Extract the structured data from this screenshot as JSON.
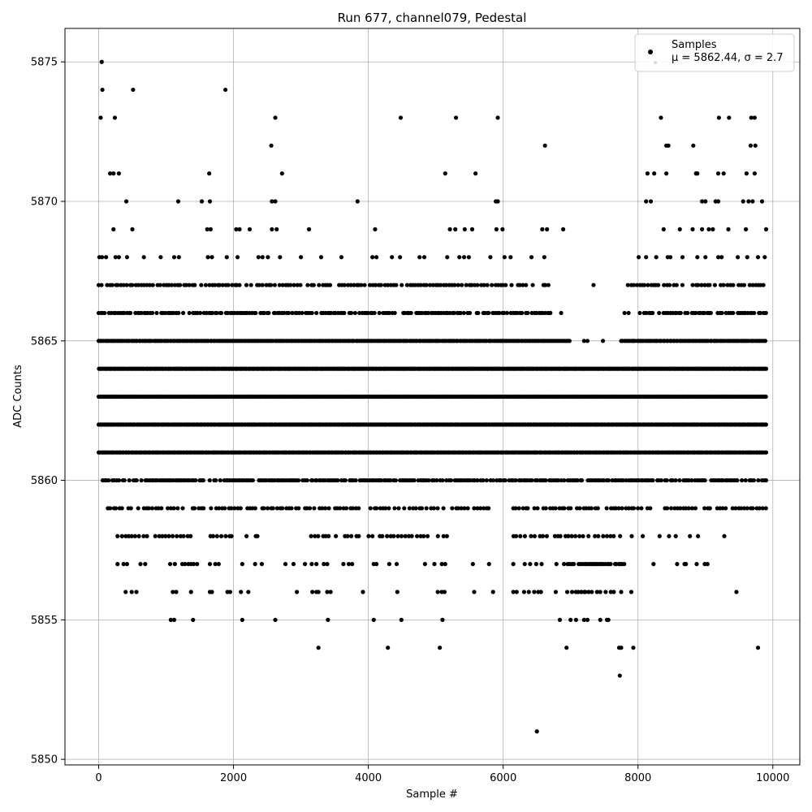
{
  "chart_data": {
    "type": "scatter",
    "title": "Run 677, channel079, Pedestal",
    "xlabel": "Sample #",
    "ylabel": "ADC Counts",
    "xlim": [
      -500,
      10400
    ],
    "ylim": [
      5849.8,
      5876.2
    ],
    "x_ticks": [
      0,
      2000,
      4000,
      6000,
      8000,
      10000
    ],
    "y_ticks": [
      5850,
      5855,
      5860,
      5865,
      5870,
      5875
    ],
    "grid": true,
    "legend": {
      "placement": "top-right",
      "series_name": "Samples",
      "stats_label": "μ = 5862.44, σ = 2.7"
    },
    "colors": {
      "marker": "#000000",
      "grid": "#b0b0b0",
      "legend_border": "#cccccc"
    },
    "n_samples_shown_range": [
      0,
      9900
    ],
    "dense_levels": [
      {
        "y": 5858,
        "x_ranges": [
          [
            280,
            2400
          ],
          [
            3150,
            3900
          ],
          [
            4000,
            5200
          ],
          [
            6150,
            8000
          ]
        ],
        "step": 55
      },
      {
        "y": 5859,
        "x_ranges": [
          [
            80,
            5800
          ],
          [
            6150,
            8200
          ],
          [
            8400,
            9300
          ],
          [
            9400,
            9900
          ]
        ],
        "step": 45
      },
      {
        "y": 5860,
        "x_ranges": [
          [
            60,
            9900
          ]
        ],
        "step": 30
      },
      {
        "y": 5861,
        "x_ranges": [
          [
            0,
            9900
          ]
        ],
        "step": 22
      },
      {
        "y": 5862,
        "x_ranges": [
          [
            0,
            9900
          ]
        ],
        "step": 20
      },
      {
        "y": 5863,
        "x_ranges": [
          [
            0,
            9900
          ]
        ],
        "step": 18
      },
      {
        "y": 5864,
        "x_ranges": [
          [
            0,
            9900
          ]
        ],
        "step": 20
      },
      {
        "y": 5865,
        "x_ranges": [
          [
            0,
            7000
          ],
          [
            7750,
            9900
          ]
        ],
        "step": 24
      },
      {
        "y": 5866,
        "x_ranges": [
          [
            0,
            6700
          ],
          [
            8000,
            9900
          ]
        ],
        "step": 32
      },
      {
        "y": 5867,
        "x_ranges": [
          [
            0,
            6700
          ],
          [
            7850,
            9900
          ]
        ],
        "step": 42
      },
      {
        "y": 5857,
        "x_ranges": [
          [
            6900,
            7800
          ]
        ],
        "step": 28
      },
      {
        "y": 5856,
        "x_ranges": [
          [
            6950,
            7750
          ]
        ],
        "step": 40
      }
    ],
    "points": [
      [
        30,
        5873
      ],
      [
        45,
        5875
      ],
      [
        55,
        5874
      ],
      [
        510,
        5874
      ],
      [
        1880,
        5874
      ],
      [
        240,
        5873
      ],
      [
        2620,
        5873
      ],
      [
        4480,
        5873
      ],
      [
        5300,
        5873
      ],
      [
        5920,
        5873
      ],
      [
        8340,
        5873
      ],
      [
        9200,
        5873
      ],
      [
        9350,
        5873
      ],
      [
        9680,
        5873
      ],
      [
        9730,
        5873
      ],
      [
        2560,
        5872
      ],
      [
        6620,
        5872
      ],
      [
        8420,
        5872
      ],
      [
        8450,
        5872
      ],
      [
        8820,
        5872
      ],
      [
        9670,
        5872
      ],
      [
        9740,
        5872
      ],
      [
        170,
        5871
      ],
      [
        220,
        5871
      ],
      [
        300,
        5871
      ],
      [
        1640,
        5871
      ],
      [
        2720,
        5871
      ],
      [
        5140,
        5871
      ],
      [
        5590,
        5871
      ],
      [
        8140,
        5871
      ],
      [
        8240,
        5871
      ],
      [
        8420,
        5871
      ],
      [
        8860,
        5871
      ],
      [
        8880,
        5871
      ],
      [
        9190,
        5871
      ],
      [
        9270,
        5871
      ],
      [
        9610,
        5871
      ],
      [
        9730,
        5871
      ],
      [
        410,
        5870
      ],
      [
        1180,
        5870
      ],
      [
        1530,
        5870
      ],
      [
        1650,
        5870
      ],
      [
        2570,
        5870
      ],
      [
        2620,
        5870
      ],
      [
        3840,
        5870
      ],
      [
        5890,
        5870
      ],
      [
        5920,
        5870
      ],
      [
        8120,
        5870
      ],
      [
        8190,
        5870
      ],
      [
        8950,
        5870
      ],
      [
        9000,
        5870
      ],
      [
        9150,
        5870
      ],
      [
        9190,
        5870
      ],
      [
        9560,
        5870
      ],
      [
        9640,
        5870
      ],
      [
        9700,
        5870
      ],
      [
        9840,
        5870
      ],
      [
        220,
        5869
      ],
      [
        500,
        5869
      ],
      [
        1610,
        5869
      ],
      [
        1660,
        5869
      ],
      [
        2040,
        5869
      ],
      [
        2090,
        5869
      ],
      [
        2240,
        5869
      ],
      [
        2570,
        5869
      ],
      [
        2640,
        5869
      ],
      [
        3120,
        5869
      ],
      [
        4100,
        5869
      ],
      [
        5210,
        5869
      ],
      [
        5290,
        5869
      ],
      [
        5430,
        5869
      ],
      [
        5540,
        5869
      ],
      [
        5900,
        5869
      ],
      [
        5990,
        5869
      ],
      [
        6580,
        5869
      ],
      [
        6650,
        5869
      ],
      [
        6890,
        5869
      ],
      [
        8380,
        5869
      ],
      [
        8620,
        5869
      ],
      [
        8810,
        5869
      ],
      [
        8950,
        5869
      ],
      [
        9050,
        5869
      ],
      [
        9110,
        5869
      ],
      [
        9340,
        5869
      ],
      [
        9600,
        5869
      ],
      [
        9900,
        5869
      ],
      [
        10,
        5868
      ],
      [
        50,
        5868
      ],
      [
        110,
        5868
      ],
      [
        250,
        5868
      ],
      [
        300,
        5868
      ],
      [
        420,
        5868
      ],
      [
        670,
        5868
      ],
      [
        920,
        5868
      ],
      [
        1120,
        5868
      ],
      [
        1190,
        5868
      ],
      [
        1620,
        5868
      ],
      [
        1680,
        5868
      ],
      [
        1900,
        5868
      ],
      [
        2060,
        5868
      ],
      [
        2370,
        5868
      ],
      [
        2430,
        5868
      ],
      [
        2510,
        5868
      ],
      [
        2690,
        5868
      ],
      [
        3000,
        5868
      ],
      [
        3300,
        5868
      ],
      [
        3600,
        5868
      ],
      [
        4060,
        5868
      ],
      [
        4120,
        5868
      ],
      [
        4350,
        5868
      ],
      [
        4470,
        5868
      ],
      [
        4760,
        5868
      ],
      [
        4830,
        5868
      ],
      [
        5170,
        5868
      ],
      [
        5350,
        5868
      ],
      [
        5420,
        5868
      ],
      [
        5490,
        5868
      ],
      [
        5810,
        5868
      ],
      [
        6020,
        5868
      ],
      [
        6110,
        5868
      ],
      [
        6420,
        5868
      ],
      [
        6610,
        5868
      ],
      [
        8010,
        5868
      ],
      [
        8120,
        5868
      ],
      [
        8270,
        5868
      ],
      [
        8440,
        5868
      ],
      [
        8480,
        5868
      ],
      [
        8660,
        5868
      ],
      [
        8880,
        5868
      ],
      [
        9000,
        5868
      ],
      [
        9190,
        5868
      ],
      [
        9240,
        5868
      ],
      [
        9480,
        5868
      ],
      [
        9620,
        5868
      ],
      [
        9780,
        5868
      ],
      [
        9880,
        5868
      ],
      [
        7340,
        5867
      ],
      [
        7200,
        5865
      ],
      [
        7250,
        5865
      ],
      [
        7480,
        5865
      ],
      [
        6560,
        5866
      ],
      [
        6700,
        5866
      ],
      [
        6860,
        5866
      ],
      [
        7800,
        5866
      ],
      [
        7860,
        5866
      ],
      [
        400,
        5856
      ],
      [
        490,
        5856
      ],
      [
        560,
        5856
      ],
      [
        1100,
        5856
      ],
      [
        1150,
        5856
      ],
      [
        1370,
        5856
      ],
      [
        1650,
        5856
      ],
      [
        1680,
        5856
      ],
      [
        1910,
        5856
      ],
      [
        1950,
        5856
      ],
      [
        2110,
        5856
      ],
      [
        2220,
        5856
      ],
      [
        2940,
        5856
      ],
      [
        3170,
        5856
      ],
      [
        3230,
        5856
      ],
      [
        3260,
        5856
      ],
      [
        3390,
        5856
      ],
      [
        3440,
        5856
      ],
      [
        3920,
        5856
      ],
      [
        4430,
        5856
      ],
      [
        5030,
        5856
      ],
      [
        5090,
        5856
      ],
      [
        5130,
        5856
      ],
      [
        5570,
        5856
      ],
      [
        5850,
        5856
      ],
      [
        6150,
        5856
      ],
      [
        6200,
        5856
      ],
      [
        6310,
        5856
      ],
      [
        6380,
        5856
      ],
      [
        6460,
        5856
      ],
      [
        6520,
        5856
      ],
      [
        6560,
        5856
      ],
      [
        6780,
        5856
      ],
      [
        7900,
        5856
      ],
      [
        9460,
        5856
      ],
      [
        1070,
        5855
      ],
      [
        1120,
        5855
      ],
      [
        1400,
        5855
      ],
      [
        2130,
        5855
      ],
      [
        2620,
        5855
      ],
      [
        3400,
        5855
      ],
      [
        4080,
        5855
      ],
      [
        4490,
        5855
      ],
      [
        5100,
        5855
      ],
      [
        6840,
        5855
      ],
      [
        7000,
        5855
      ],
      [
        7080,
        5855
      ],
      [
        7200,
        5855
      ],
      [
        7250,
        5855
      ],
      [
        7440,
        5855
      ],
      [
        7540,
        5855
      ],
      [
        7560,
        5855
      ],
      [
        3260,
        5854
      ],
      [
        4290,
        5854
      ],
      [
        5060,
        5854
      ],
      [
        6940,
        5854
      ],
      [
        7720,
        5854
      ],
      [
        7750,
        5854
      ],
      [
        7930,
        5854
      ],
      [
        9780,
        5854
      ],
      [
        7730,
        5853
      ],
      [
        6500,
        5851
      ],
      [
        280,
        5857
      ],
      [
        370,
        5857
      ],
      [
        420,
        5857
      ],
      [
        620,
        5857
      ],
      [
        690,
        5857
      ],
      [
        1060,
        5857
      ],
      [
        1130,
        5857
      ],
      [
        1240,
        5857
      ],
      [
        1280,
        5857
      ],
      [
        1330,
        5857
      ],
      [
        1370,
        5857
      ],
      [
        1410,
        5857
      ],
      [
        1460,
        5857
      ],
      [
        1650,
        5857
      ],
      [
        1730,
        5857
      ],
      [
        1780,
        5857
      ],
      [
        2130,
        5857
      ],
      [
        2320,
        5857
      ],
      [
        2420,
        5857
      ],
      [
        2770,
        5857
      ],
      [
        2890,
        5857
      ],
      [
        3060,
        5857
      ],
      [
        3160,
        5857
      ],
      [
        3230,
        5857
      ],
      [
        3340,
        5857
      ],
      [
        3390,
        5857
      ],
      [
        3630,
        5857
      ],
      [
        3710,
        5857
      ],
      [
        3760,
        5857
      ],
      [
        4080,
        5857
      ],
      [
        4120,
        5857
      ],
      [
        4310,
        5857
      ],
      [
        4420,
        5857
      ],
      [
        4840,
        5857
      ],
      [
        4980,
        5857
      ],
      [
        5090,
        5857
      ],
      [
        5140,
        5857
      ],
      [
        5550,
        5857
      ],
      [
        5790,
        5857
      ],
      [
        6150,
        5857
      ],
      [
        6320,
        5857
      ],
      [
        6400,
        5857
      ],
      [
        6490,
        5857
      ],
      [
        6570,
        5857
      ],
      [
        6790,
        5857
      ],
      [
        8230,
        5857
      ],
      [
        8580,
        5857
      ],
      [
        8690,
        5857
      ],
      [
        8710,
        5857
      ],
      [
        8870,
        5857
      ],
      [
        8990,
        5857
      ],
      [
        9030,
        5857
      ],
      [
        8070,
        5858
      ],
      [
        8320,
        5858
      ],
      [
        8460,
        5858
      ],
      [
        8560,
        5858
      ],
      [
        8770,
        5858
      ],
      [
        8890,
        5858
      ],
      [
        9280,
        5858
      ]
    ]
  }
}
